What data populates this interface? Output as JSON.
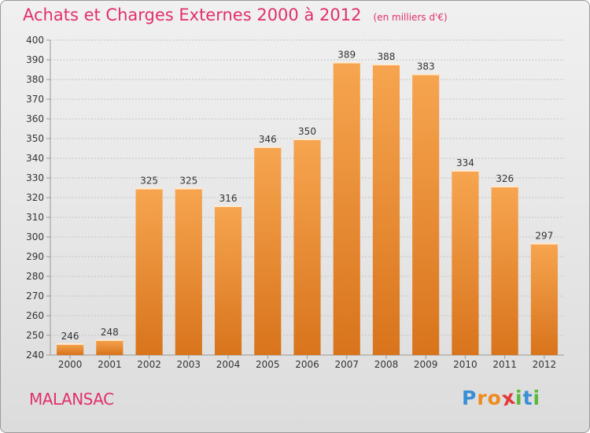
{
  "chart_data": {
    "type": "bar",
    "title": "Achats et Charges Externes 2000 à 2012",
    "unit": "(en milliers d'€)",
    "categories": [
      "2000",
      "2001",
      "2002",
      "2003",
      "2004",
      "2005",
      "2006",
      "2007",
      "2008",
      "2009",
      "2010",
      "2011",
      "2012"
    ],
    "values": [
      246,
      248,
      325,
      325,
      316,
      346,
      350,
      389,
      388,
      383,
      334,
      326,
      297
    ],
    "ylim": [
      240,
      400
    ],
    "yticks": [
      240,
      250,
      260,
      270,
      280,
      290,
      300,
      310,
      320,
      330,
      340,
      350,
      360,
      370,
      380,
      390,
      400
    ],
    "grid": true,
    "colors": {
      "bar_top": "#f7a550",
      "bar_bottom": "#d8741c",
      "title": "#e0306e"
    }
  },
  "commune": "MALANSAC",
  "logo": {
    "text": "Proxiti",
    "letters": [
      "P",
      "r",
      "o",
      "x",
      "i",
      "t",
      "i"
    ],
    "colors": [
      "#3a8fd6",
      "#f08a1c",
      "#f08a1c",
      "#e23a3a",
      "#59b93a",
      "#3a8fd6",
      "#59b93a"
    ]
  }
}
